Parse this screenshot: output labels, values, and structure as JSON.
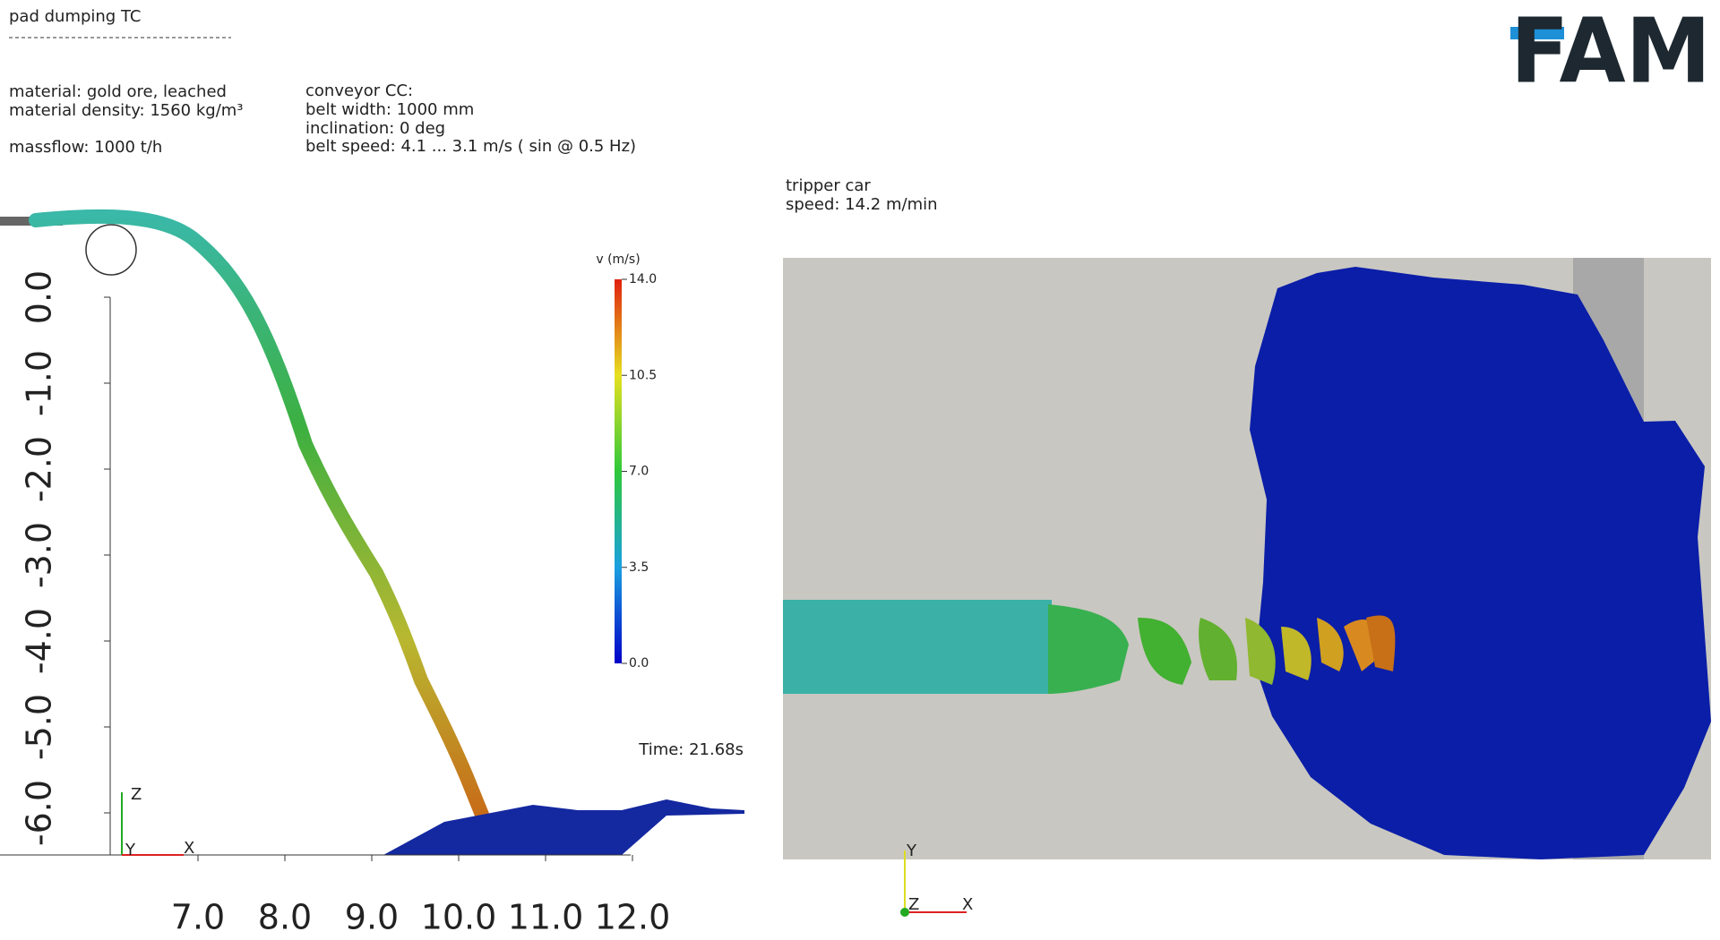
{
  "header": {
    "title": "pad dumping TC",
    "logo": "FAM"
  },
  "material": [
    "material: gold ore, leached",
    "material density: 1560 kg/m³",
    "massflow: 1000 t/h"
  ],
  "conveyor": [
    "conveyor CC:",
    "belt width: 1000 mm",
    "inclination: 0 deg",
    "belt speed: 4.1 ... 3.1 m/s ( sin @ 0.5 Hz)"
  ],
  "tripper": [
    "tripper car",
    "speed: 14.2 m/min"
  ],
  "left_view": {
    "yticks": [
      {
        "value": 0,
        "label": "0.0"
      },
      {
        "value": -1,
        "label": "-1.0"
      },
      {
        "value": -2,
        "label": "-2.0"
      },
      {
        "value": -3,
        "label": "-3.0"
      },
      {
        "value": -4,
        "label": "-4.0"
      },
      {
        "value": -5,
        "label": "-5.0"
      },
      {
        "value": -6,
        "label": "-6.0"
      }
    ],
    "xticks": [
      {
        "value": 7,
        "label": "7.0"
      },
      {
        "value": 8,
        "label": "8.0"
      },
      {
        "value": 9,
        "label": "9.0"
      },
      {
        "value": 10,
        "label": "10.0"
      },
      {
        "value": 11,
        "label": "11.0"
      },
      {
        "value": 12,
        "label": "12.0"
      }
    ],
    "colorbar": {
      "title": "v (m/s)",
      "ticks": [
        {
          "value": 14,
          "label": "14.0"
        },
        {
          "value": 10.5,
          "label": "10.5"
        },
        {
          "value": 7,
          "label": "7.0"
        },
        {
          "value": 3.5,
          "label": "3.5"
        },
        {
          "value": 0,
          "label": "0.0"
        }
      ]
    },
    "time": "Time: 21.68s",
    "triad": {
      "z": "Z",
      "x": "X",
      "y": "Y"
    }
  },
  "right_view": {
    "triad": {
      "y": "Y",
      "z": "Z",
      "x": "X"
    }
  }
}
